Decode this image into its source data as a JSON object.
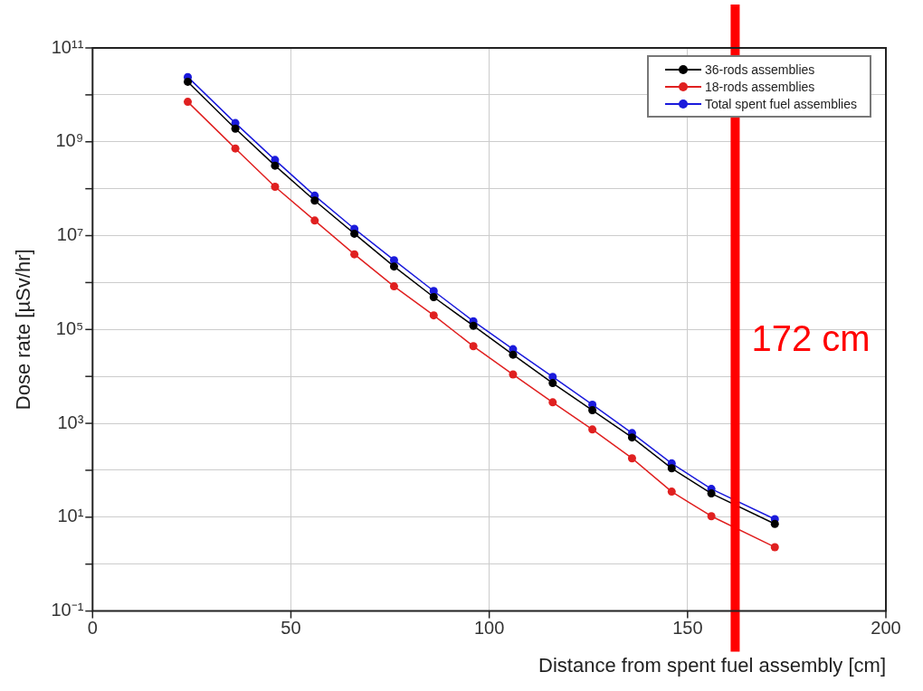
{
  "chart_data": {
    "type": "line",
    "xlabel": "Distance from spent fuel assembly [cm]",
    "ylabel": "Dose rate [µSv/hr]",
    "x": [
      24,
      36,
      46,
      56,
      66,
      76,
      86,
      96,
      106,
      116,
      126,
      136,
      146,
      156,
      172
    ],
    "series": [
      {
        "name": "36-rods assemblies",
        "color": "#000000",
        "values": [
          19000000000.0,
          1900000000.0,
          310000000.0,
          56000000.0,
          11000000.0,
          2200000.0,
          490000.0,
          120000.0,
          29000.0,
          7200.0,
          1900.0,
          500,
          110,
          32,
          7.2
        ]
      },
      {
        "name": "18-rods assemblies",
        "color": "#e02020",
        "values": [
          7100000000.0,
          720000000.0,
          110000000.0,
          21000000.0,
          4000000.0,
          830000.0,
          200000.0,
          44000.0,
          11000.0,
          2800.0,
          740,
          180,
          35,
          10.5,
          2.3
        ]
      },
      {
        "name": "Total spent fuel assemblies",
        "color": "#1a1adc",
        "values": [
          24000000000.0,
          2500000000.0,
          410000000.0,
          71000000.0,
          14000000.0,
          3000000.0,
          660000.0,
          150000.0,
          38000.0,
          9800.0,
          2500.0,
          620,
          140,
          40,
          9.1
        ]
      }
    ],
    "xlim": [
      0,
      200
    ],
    "xticks": [
      0,
      50,
      100,
      150,
      200
    ],
    "ylim": [
      0.1,
      100000000000.0
    ],
    "yticks": [
      {
        "value": 0.1,
        "label": "10⁻¹"
      },
      {
        "value": 1,
        "label": null
      },
      {
        "value": 10,
        "label": "10¹"
      },
      {
        "value": 100,
        "label": null
      },
      {
        "value": 1000,
        "label": "10³"
      },
      {
        "value": 10000.0,
        "label": null
      },
      {
        "value": 100000.0,
        "label": "10⁵"
      },
      {
        "value": 1000000.0,
        "label": null
      },
      {
        "value": 10000000.0,
        "label": "10⁷"
      },
      {
        "value": 100000000.0,
        "label": null
      },
      {
        "value": 1000000000.0,
        "label": "10⁹"
      },
      {
        "value": 10000000000.0,
        "label": null
      },
      {
        "value": 100000000000.0,
        "label": "10¹¹"
      }
    ],
    "log": "y",
    "grid": true,
    "legend": "top right",
    "marker": "circle",
    "line_style": "solid",
    "ref_lines": [
      {
        "axis": "x",
        "value": 162,
        "label": "172 cm",
        "color": "#ff0000"
      }
    ]
  }
}
